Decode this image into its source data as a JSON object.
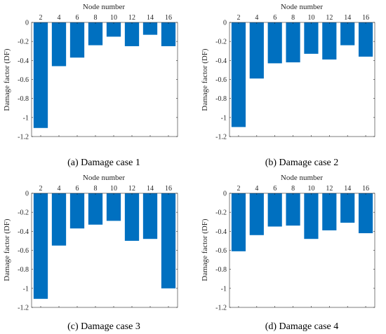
{
  "chart_data": [
    {
      "type": "bar",
      "xlabel": "Node number",
      "ylabel": "Damage factor (DF)",
      "caption": "(a) Damage case 1",
      "categories": [
        "2",
        "4",
        "6",
        "8",
        "10",
        "12",
        "14",
        "16"
      ],
      "values": [
        -1.11,
        -0.46,
        -0.37,
        -0.24,
        -0.15,
        -0.25,
        -0.13,
        -0.25
      ],
      "ylim": [
        -1.2,
        0
      ],
      "yticks": [
        "0",
        "-0.2",
        "-0.4",
        "-0.6",
        "-0.8",
        "-1",
        "-1.2"
      ],
      "x_axis_position": "top",
      "grid": false,
      "bar_color": "#0070C0"
    },
    {
      "type": "bar",
      "xlabel": "Node number",
      "ylabel": "Damage factor (DF)",
      "caption": "(b) Damage case 2",
      "categories": [
        "2",
        "4",
        "6",
        "8",
        "10",
        "12",
        "14",
        "16"
      ],
      "values": [
        -1.1,
        -0.59,
        -0.43,
        -0.42,
        -0.33,
        -0.39,
        -0.24,
        -0.36
      ],
      "ylim": [
        -1.2,
        0
      ],
      "yticks": [
        "0",
        "-0.2",
        "-0.4",
        "-0.6",
        "-0.8",
        "-1",
        "-1.2"
      ],
      "x_axis_position": "top",
      "grid": false,
      "bar_color": "#0070C0"
    },
    {
      "type": "bar",
      "xlabel": "Node number",
      "ylabel": "Damage factor (DF)",
      "caption": "(c) Damage case 3",
      "categories": [
        "2",
        "4",
        "6",
        "8",
        "10",
        "12",
        "14",
        "16"
      ],
      "values": [
        -1.11,
        -0.55,
        -0.37,
        -0.33,
        -0.29,
        -0.5,
        -0.48,
        -1.0
      ],
      "ylim": [
        -1.2,
        0
      ],
      "yticks": [
        "0",
        "-0.2",
        "-0.4",
        "-0.6",
        "-0.8",
        "-1",
        "-1.2"
      ],
      "x_axis_position": "top",
      "grid": false,
      "bar_color": "#0070C0"
    },
    {
      "type": "bar",
      "xlabel": "Node number",
      "ylabel": "Damage factor (DF)",
      "caption": "(d) Damage case 4",
      "categories": [
        "2",
        "4",
        "6",
        "8",
        "10",
        "12",
        "14",
        "16"
      ],
      "values": [
        -0.61,
        -0.44,
        -0.35,
        -0.34,
        -0.48,
        -0.39,
        -0.31,
        -0.42
      ],
      "ylim": [
        -1.2,
        0
      ],
      "yticks": [
        "0",
        "-0.2",
        "-0.4",
        "-0.6",
        "-0.8",
        "-1",
        "-1.2"
      ],
      "x_axis_position": "top",
      "grid": false,
      "bar_color": "#0070C0"
    }
  ]
}
